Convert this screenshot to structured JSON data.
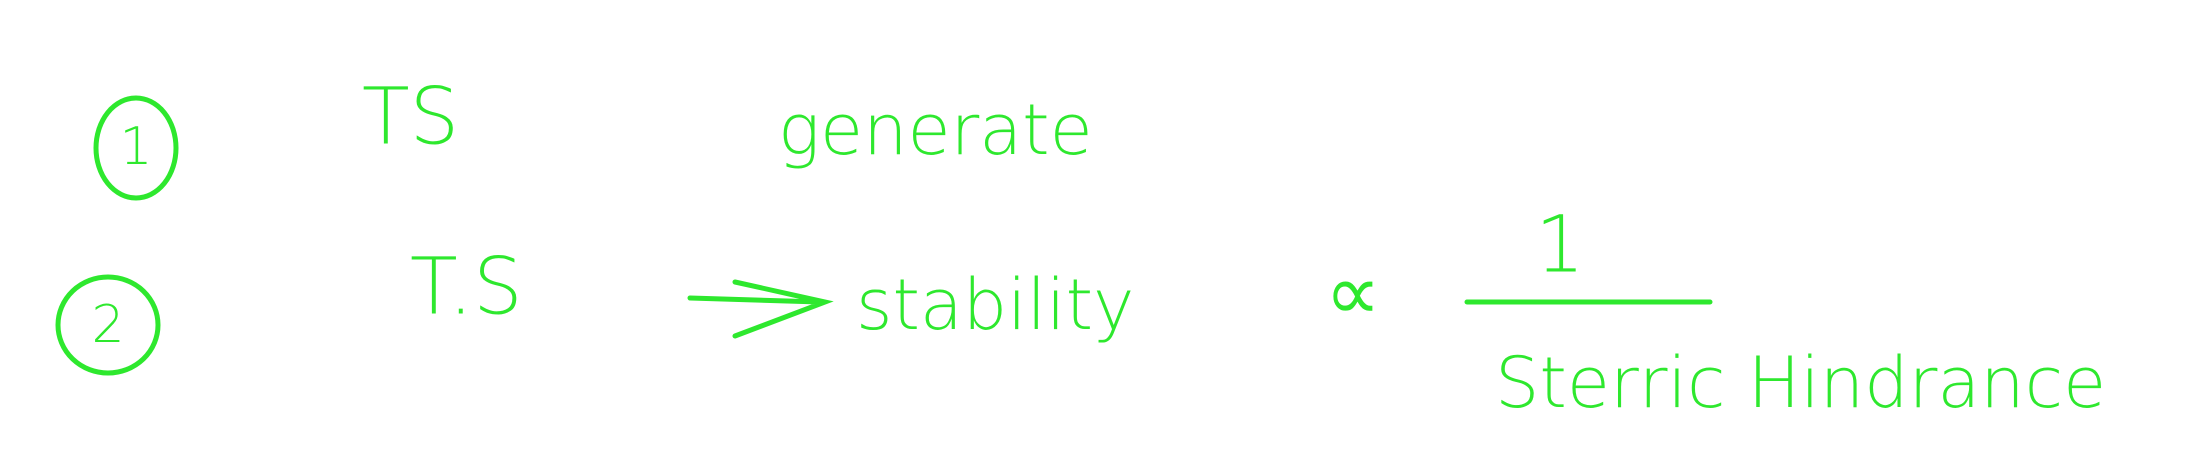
{
  "lines": [
    {
      "number": "1",
      "items": [
        "TS",
        "generate"
      ]
    },
    {
      "number": "2",
      "items": [
        "T.S",
        "stability"
      ],
      "relation": "∝",
      "numerator": "1",
      "denominator": "Sterric Hindrance"
    }
  ]
}
